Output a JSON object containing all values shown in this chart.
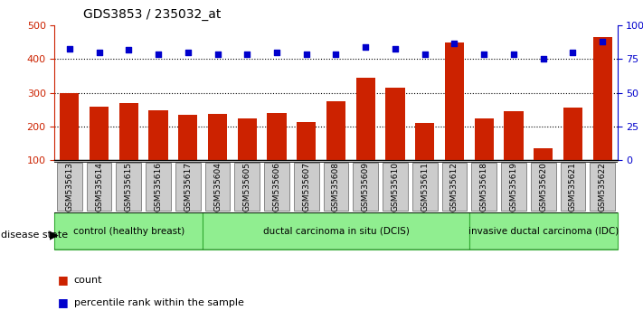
{
  "title": "GDS3853 / 235032_at",
  "samples": [
    "GSM535613",
    "GSM535614",
    "GSM535615",
    "GSM535616",
    "GSM535617",
    "GSM535604",
    "GSM535605",
    "GSM535606",
    "GSM535607",
    "GSM535608",
    "GSM535609",
    "GSM535610",
    "GSM535611",
    "GSM535612",
    "GSM535618",
    "GSM535619",
    "GSM535620",
    "GSM535621",
    "GSM535622"
  ],
  "counts": [
    300,
    260,
    270,
    248,
    235,
    238,
    225,
    240,
    213,
    275,
    345,
    315,
    210,
    450,
    225,
    245,
    135,
    255,
    465
  ],
  "percentiles": [
    83,
    80,
    82,
    79,
    80,
    79,
    79,
    80,
    79,
    79,
    84,
    83,
    79,
    87,
    79,
    79,
    75,
    80,
    88
  ],
  "groups": [
    {
      "label": "control (healthy breast)",
      "start": 0,
      "end": 5
    },
    {
      "label": "ductal carcinoma in situ (DCIS)",
      "start": 5,
      "end": 14
    },
    {
      "label": "invasive ductal carcinoma (IDC)",
      "start": 14,
      "end": 19
    }
  ],
  "ylim_left": [
    100,
    500
  ],
  "ylim_right": [
    0,
    100
  ],
  "bar_color": "#cc2200",
  "dot_color": "#0000cc",
  "group_fill": "#90ee90",
  "group_edge": "#33aa33",
  "tick_bg": "#cccccc",
  "tick_edge": "#888888",
  "legend_items": [
    {
      "label": "count",
      "color": "#cc2200"
    },
    {
      "label": "percentile rank within the sample",
      "color": "#0000cc"
    }
  ]
}
